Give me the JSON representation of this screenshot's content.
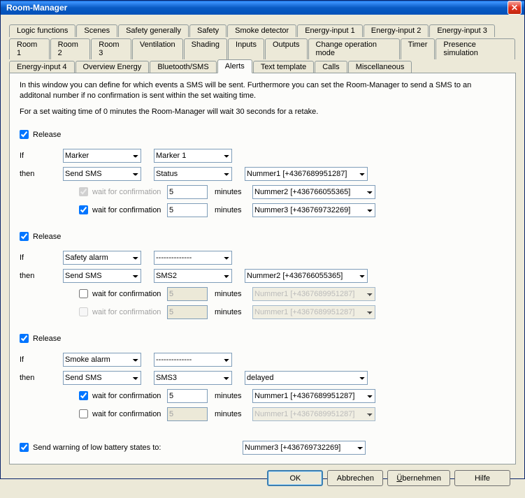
{
  "window": {
    "title": "Room-Manager"
  },
  "tabs": {
    "row1": [
      "Logic functions",
      "Scenes",
      "Safety generally",
      "Safety",
      "Smoke detector",
      "Energy-input 1",
      "Energy-input 2",
      "Energy-input 3"
    ],
    "row2": [
      "Room 1",
      "Room 2",
      "Room 3",
      "Ventilation",
      "Shading",
      "Inputs",
      "Outputs",
      "Change operation mode",
      "Timer",
      "Presence simulation"
    ],
    "row3": [
      "Energy-input 4",
      "Overview Energy",
      "Bluetooth/SMS",
      "Alerts",
      "Text template",
      "Calls",
      "Miscellaneous"
    ]
  },
  "active_tab": "Alerts",
  "description": {
    "p1": "In this window you can define for which events a SMS will be sent. Furthermore you can set the Room-Manager to send a SMS to an additonal number if no confirmation is sent within the set waiting time.",
    "p2": "For a set waiting time of 0 minutes the Room-Manager will wait 30 seconds for a retake."
  },
  "labels": {
    "release": "Release",
    "if": "If",
    "then": "then",
    "wait": "wait for confirmation",
    "minutes": "minutes",
    "lowbat": "Send warning of low battery states to:"
  },
  "blocks": [
    {
      "release": true,
      "if_sel": "Marker",
      "if_sel2": "Marker 1",
      "then_sel": "Send SMS",
      "then_sel2": "Status",
      "then_sel3": "Nummer1 [+4367689951287]",
      "wait1": {
        "checked": true,
        "disabled": true,
        "min": "5",
        "num": "Nummer2 [+436766055365]",
        "num_disabled": false,
        "min_disabled": false
      },
      "wait2": {
        "checked": true,
        "disabled": false,
        "min": "5",
        "num": "Nummer3 [+436769732269]",
        "num_disabled": false,
        "min_disabled": false
      }
    },
    {
      "release": true,
      "if_sel": "Safety alarm",
      "if_sel2": "--------------",
      "then_sel": "Send SMS",
      "then_sel2": "SMS2",
      "then_sel3": "Nummer2 [+436766055365]",
      "wait1": {
        "checked": false,
        "disabled": false,
        "min": "5",
        "num": "Nummer1 [+4367689951287]",
        "num_disabled": true,
        "min_disabled": true
      },
      "wait2": {
        "checked": false,
        "disabled": true,
        "min": "5",
        "num": "Nummer1 [+4367689951287]",
        "num_disabled": true,
        "min_disabled": true
      }
    },
    {
      "release": true,
      "if_sel": "Smoke alarm",
      "if_sel2": "--------------",
      "then_sel": "Send SMS",
      "then_sel2": "SMS3",
      "then_sel3": "delayed",
      "wait1": {
        "checked": true,
        "disabled": false,
        "min": "5",
        "num": "Nummer1 [+4367689951287]",
        "num_disabled": false,
        "min_disabled": false
      },
      "wait2": {
        "checked": false,
        "disabled": false,
        "min": "5",
        "num": "Nummer1 [+4367689951287]",
        "num_disabled": true,
        "min_disabled": true
      }
    }
  ],
  "lowbat_checked": true,
  "lowbat_num": "Nummer3 [+436769732269]",
  "buttons": {
    "ok": "OK",
    "cancel": "Abbrechen",
    "apply": "Übernehmen",
    "apply_u": "Ü",
    "apply_rest": "bernehmen",
    "help": "Hilfe"
  }
}
